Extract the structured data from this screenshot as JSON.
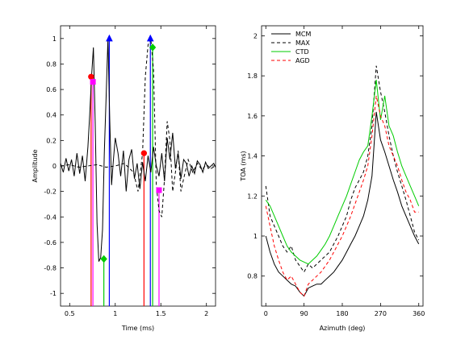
{
  "chart_data": [
    {
      "type": "line",
      "xlabel": "Time (ms)",
      "ylabel": "Amplitude",
      "xlim": [
        0.4,
        2.1
      ],
      "ylim": [
        -1.1,
        1.1
      ],
      "xticks": [
        0.5,
        1,
        1.5,
        2
      ],
      "xtick_labels": [
        "0.5",
        "1",
        "1.5",
        "2"
      ],
      "yticks": [
        -1,
        -0.8,
        -0.6,
        -0.4,
        -0.2,
        0,
        0.2,
        0.4,
        0.6,
        0.8,
        1
      ],
      "ytick_labels": [
        "-1",
        "-0.8",
        "-0.6",
        "-0.4",
        "-0.2",
        "0",
        "0.2",
        "0.4",
        "0.6",
        "0.8",
        "1"
      ],
      "series": [
        {
          "style": "solid",
          "color": "#000000",
          "x": [
            0.4,
            0.43,
            0.46,
            0.49,
            0.52,
            0.55,
            0.58,
            0.61,
            0.64,
            0.67,
            0.7,
            0.72,
            0.74,
            0.76,
            0.78,
            0.8,
            0.82,
            0.84,
            0.86,
            0.88,
            0.9,
            0.92,
            0.94,
            0.96,
            0.98,
            1.0,
            1.03,
            1.06,
            1.09,
            1.12,
            1.15,
            1.18,
            1.21,
            1.24,
            1.27,
            1.3,
            1.33,
            1.36,
            1.39,
            1.42,
            1.45,
            1.48,
            1.51,
            1.54,
            1.57,
            1.6,
            1.63,
            1.66,
            1.69,
            1.72,
            1.75,
            1.78,
            1.81,
            1.84,
            1.87,
            1.9,
            1.93,
            1.96,
            1.99,
            2.02,
            2.05,
            2.08,
            2.1
          ],
          "y": [
            0.02,
            -0.05,
            0.06,
            -0.04,
            0.05,
            -0.08,
            0.1,
            -0.06,
            0.08,
            -0.12,
            0.15,
            0.4,
            0.7,
            0.93,
            0.35,
            -0.45,
            -0.75,
            -0.72,
            -0.5,
            0.1,
            0.55,
            1.0,
            0.35,
            -0.15,
            0.05,
            0.22,
            0.1,
            -0.08,
            0.12,
            -0.2,
            0.05,
            0.13,
            -0.1,
            0.02,
            -0.18,
            0.03,
            -0.12,
            0.08,
            -0.05,
            0.15,
            0.0,
            -0.08,
            0.1,
            -0.12,
            0.22,
            0.05,
            0.26,
            -0.02,
            0.1,
            -0.1,
            0.05,
            0.02,
            -0.08,
            0.0,
            -0.06,
            0.04,
            0.01,
            -0.05,
            0.03,
            -0.02,
            0.0,
            0.02,
            -0.01
          ]
        },
        {
          "style": "dashed",
          "color": "#000000",
          "x": [
            0.4,
            0.5,
            0.6,
            0.7,
            0.8,
            0.9,
            1.0,
            1.1,
            1.2,
            1.25,
            1.3,
            1.33,
            1.36,
            1.39,
            1.42,
            1.45,
            1.48,
            1.51,
            1.54,
            1.57,
            1.6,
            1.63,
            1.66,
            1.69,
            1.72,
            1.75,
            1.8,
            1.85,
            1.9,
            1.95,
            2.0,
            2.05,
            2.1
          ],
          "y": [
            0.0,
            0.01,
            -0.01,
            0.0,
            0.01,
            -0.01,
            0.0,
            0.02,
            -0.05,
            -0.2,
            0.1,
            0.7,
            0.95,
            1.0,
            0.75,
            -0.15,
            -0.35,
            -0.4,
            -0.1,
            0.35,
            0.2,
            -0.2,
            -0.05,
            0.12,
            -0.2,
            -0.1,
            0.05,
            -0.05,
            0.02,
            -0.03,
            0.01,
            -0.02,
            0.0
          ]
        }
      ],
      "markers": [
        {
          "x": 0.735,
          "y": 0.7,
          "color": "#ff0000",
          "shape": "circle"
        },
        {
          "x": 0.755,
          "y": 0.66,
          "color": "#ff00ff",
          "shape": "square"
        },
        {
          "x": 0.935,
          "y": 1.0,
          "color": "#0000ff",
          "shape": "triangle"
        },
        {
          "x": 0.875,
          "y": -0.73,
          "color": "#00cc00",
          "shape": "diamond"
        },
        {
          "x": 1.315,
          "y": 0.1,
          "color": "#ff0000",
          "shape": "circle"
        },
        {
          "x": 1.385,
          "y": 1.0,
          "color": "#0000ff",
          "shape": "triangle"
        },
        {
          "x": 1.41,
          "y": 0.93,
          "color": "#00cc00",
          "shape": "diamond"
        },
        {
          "x": 1.48,
          "y": -0.19,
          "color": "#ff00ff",
          "shape": "square"
        }
      ],
      "vlines": [
        {
          "x": 0.735,
          "color": "#ff0000"
        },
        {
          "x": 0.755,
          "color": "#ff00ff"
        },
        {
          "x": 0.935,
          "color": "#0000ff"
        },
        {
          "x": 0.875,
          "color": "#00cc00"
        },
        {
          "x": 1.315,
          "color": "#ff0000"
        },
        {
          "x": 1.385,
          "color": "#0000ff"
        },
        {
          "x": 1.41,
          "color": "#00cc00"
        },
        {
          "x": 1.48,
          "color": "#ff00ff"
        }
      ]
    },
    {
      "type": "line",
      "xlabel": "Azimuth (deg)",
      "ylabel": "TOA (ms)",
      "xlim": [
        -10,
        370
      ],
      "ylim": [
        0.65,
        2.05
      ],
      "xticks": [
        0,
        90,
        180,
        270,
        360
      ],
      "xtick_labels": [
        "0",
        "90",
        "180",
        "270",
        "360"
      ],
      "yticks": [
        0.8,
        1.0,
        1.2,
        1.4,
        1.6,
        1.8,
        2.0
      ],
      "ytick_labels": [
        "0.8",
        "1",
        "1.2",
        "1.4",
        "1.6",
        "1.8",
        "2"
      ],
      "legend_position": "top-left",
      "series": [
        {
          "name": "MCM",
          "style": "solid",
          "color": "#000000",
          "x": [
            0,
            10,
            20,
            30,
            40,
            50,
            60,
            70,
            80,
            90,
            100,
            110,
            120,
            130,
            140,
            150,
            160,
            170,
            180,
            190,
            200,
            210,
            220,
            230,
            240,
            250,
            260,
            270,
            280,
            290,
            300,
            310,
            320,
            330,
            340,
            350,
            360
          ],
          "y": [
            1.0,
            0.92,
            0.86,
            0.82,
            0.8,
            0.78,
            0.76,
            0.75,
            0.72,
            0.7,
            0.74,
            0.75,
            0.76,
            0.76,
            0.78,
            0.8,
            0.82,
            0.85,
            0.88,
            0.92,
            0.96,
            1.0,
            1.05,
            1.1,
            1.18,
            1.3,
            1.62,
            1.48,
            1.42,
            1.35,
            1.28,
            1.22,
            1.15,
            1.1,
            1.05,
            1.0,
            0.96
          ]
        },
        {
          "name": "MAX",
          "style": "dashed",
          "color": "#000000",
          "x": [
            0,
            10,
            20,
            30,
            40,
            50,
            60,
            70,
            80,
            90,
            100,
            110,
            120,
            130,
            140,
            150,
            160,
            170,
            180,
            190,
            200,
            210,
            220,
            230,
            240,
            250,
            260,
            270,
            280,
            290,
            300,
            310,
            320,
            330,
            340,
            350,
            360
          ],
          "y": [
            1.25,
            1.1,
            1.05,
            1.0,
            0.95,
            0.92,
            0.95,
            0.88,
            0.85,
            0.82,
            0.86,
            0.84,
            0.86,
            0.88,
            0.9,
            0.92,
            0.96,
            1.0,
            1.05,
            1.1,
            1.18,
            1.24,
            1.28,
            1.32,
            1.4,
            1.55,
            1.85,
            1.72,
            1.62,
            1.5,
            1.4,
            1.32,
            1.25,
            1.18,
            1.1,
            1.02,
            0.98
          ]
        },
        {
          "name": "CTD",
          "style": "solid",
          "color": "#00cc00",
          "x": [
            0,
            10,
            20,
            30,
            40,
            50,
            60,
            70,
            80,
            90,
            100,
            110,
            120,
            130,
            140,
            150,
            160,
            170,
            180,
            190,
            200,
            210,
            220,
            230,
            240,
            250,
            260,
            270,
            280,
            290,
            300,
            310,
            320,
            330,
            340,
            350,
            360
          ],
          "y": [
            1.18,
            1.15,
            1.1,
            1.05,
            1.0,
            0.95,
            0.92,
            0.9,
            0.88,
            0.87,
            0.86,
            0.88,
            0.9,
            0.93,
            0.96,
            1.0,
            1.05,
            1.1,
            1.15,
            1.2,
            1.26,
            1.32,
            1.38,
            1.42,
            1.45,
            1.6,
            1.78,
            1.58,
            1.7,
            1.55,
            1.5,
            1.42,
            1.35,
            1.3,
            1.25,
            1.2,
            1.15
          ]
        },
        {
          "name": "AGD",
          "style": "dashed",
          "color": "#ff0000",
          "x": [
            0,
            10,
            20,
            30,
            40,
            50,
            60,
            70,
            80,
            90,
            100,
            110,
            120,
            130,
            140,
            150,
            160,
            170,
            180,
            190,
            200,
            210,
            220,
            230,
            240,
            250,
            260,
            270,
            280,
            290,
            300,
            310,
            320,
            330,
            340,
            350,
            360
          ],
          "y": [
            1.15,
            1.05,
            0.95,
            0.88,
            0.82,
            0.78,
            0.8,
            0.76,
            0.72,
            0.7,
            0.76,
            0.78,
            0.8,
            0.82,
            0.85,
            0.88,
            0.92,
            0.96,
            1.0,
            1.05,
            1.1,
            1.16,
            1.22,
            1.28,
            1.35,
            1.5,
            1.7,
            1.6,
            1.55,
            1.45,
            1.4,
            1.35,
            1.28,
            1.22,
            1.18,
            1.12,
            1.12
          ]
        }
      ]
    }
  ]
}
